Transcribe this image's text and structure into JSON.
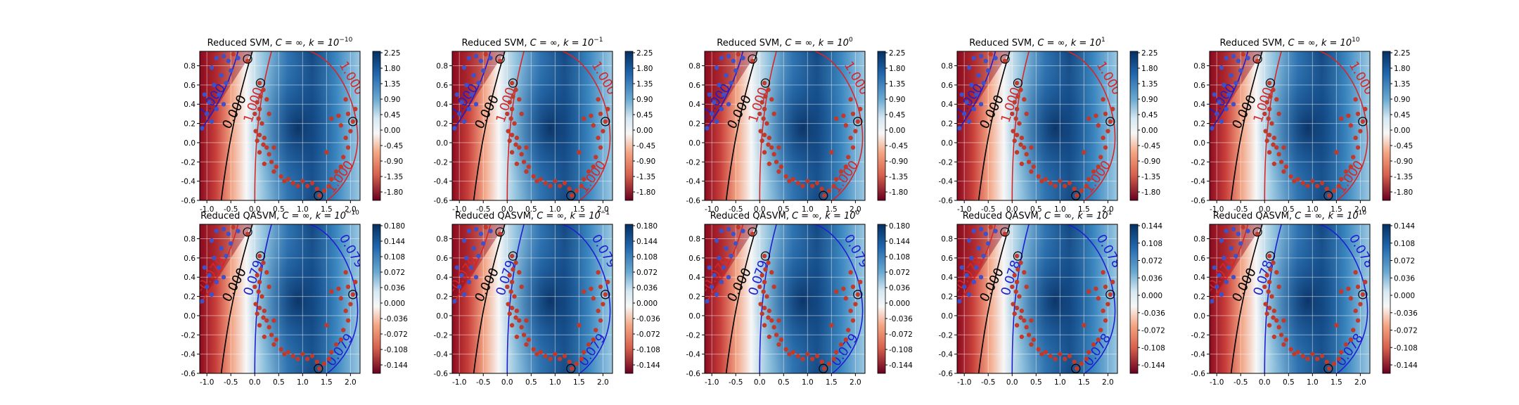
{
  "figure_colors": {
    "class_neg": "#c0392b",
    "class_pos": "#3f51c8",
    "boundary": "#000000",
    "margin_neg": "#d62728",
    "margin_pos": "#1f1fd0"
  },
  "chart_data": [
    {
      "type": "heatmap",
      "title_prefix": "Reduced SVM, ",
      "title_math": "C = ∞, k = 10",
      "title_exp": "−10",
      "xlim": [
        -1.15,
        2.2
      ],
      "ylim": [
        -0.6,
        0.95
      ],
      "xticks": [
        "-1.0",
        "-0.5",
        "0.0",
        "0.5",
        "1.0",
        "1.5",
        "2.0"
      ],
      "yticks": [
        "-0.6",
        "-0.4",
        "-0.2",
        "0.0",
        "0.2",
        "0.4",
        "0.6",
        "0.8"
      ],
      "colorbar_ticks": [
        "2.25",
        "1.80",
        "1.35",
        "0.90",
        "0.45",
        "0.00",
        "-0.45",
        "-0.90",
        "-1.35",
        "-1.80"
      ],
      "contour_labels": {
        "boundary": "0.000",
        "neg": "-1.000",
        "pos": "1.000",
        "far": "1.000",
        "low": "1.000"
      }
    },
    {
      "type": "heatmap",
      "title_prefix": "Reduced SVM, ",
      "title_math": "C = ∞, k = 10",
      "title_exp": "−1",
      "xlim": [
        -1.15,
        2.2
      ],
      "ylim": [
        -0.6,
        0.95
      ],
      "xticks": [
        "-1.0",
        "-0.5",
        "0.0",
        "0.5",
        "1.0",
        "1.5",
        "2.0"
      ],
      "yticks": [
        "-0.6",
        "-0.4",
        "-0.2",
        "0.0",
        "0.2",
        "0.4",
        "0.6",
        "0.8"
      ],
      "colorbar_ticks": [
        "2.25",
        "1.80",
        "1.35",
        "0.90",
        "0.45",
        "0.00",
        "-0.45",
        "-0.90",
        "-1.35",
        "-1.80"
      ],
      "contour_labels": {
        "boundary": "0.000",
        "neg": "-1.000",
        "pos": "1.000",
        "far": "1.000",
        "low": "1.000"
      }
    },
    {
      "type": "heatmap",
      "title_prefix": "Reduced SVM, ",
      "title_math": "C = ∞, k = 10",
      "title_exp": "0",
      "xlim": [
        -1.15,
        2.2
      ],
      "ylim": [
        -0.6,
        0.95
      ],
      "xticks": [
        "-1.0",
        "-0.5",
        "0.0",
        "0.5",
        "1.0",
        "1.5",
        "2.0"
      ],
      "yticks": [
        "-0.6",
        "-0.4",
        "-0.2",
        "0.0",
        "0.2",
        "0.4",
        "0.6",
        "0.8"
      ],
      "colorbar_ticks": [
        "2.25",
        "1.80",
        "1.35",
        "0.90",
        "0.45",
        "0.00",
        "-0.45",
        "-0.90",
        "-1.35",
        "-1.80"
      ],
      "contour_labels": {
        "boundary": "0.000",
        "neg": "-1.000",
        "pos": "1.000",
        "far": "1.000",
        "low": "1.000"
      }
    },
    {
      "type": "heatmap",
      "title_prefix": "Reduced SVM, ",
      "title_math": "C = ∞, k = 10",
      "title_exp": "1",
      "xlim": [
        -1.15,
        2.2
      ],
      "ylim": [
        -0.6,
        0.95
      ],
      "xticks": [
        "-1.0",
        "-0.5",
        "0.0",
        "0.5",
        "1.0",
        "1.5",
        "2.0"
      ],
      "yticks": [
        "-0.6",
        "-0.4",
        "-0.2",
        "0.0",
        "0.2",
        "0.4",
        "0.6",
        "0.8"
      ],
      "colorbar_ticks": [
        "2.25",
        "1.80",
        "1.35",
        "0.90",
        "0.45",
        "0.00",
        "-0.45",
        "-0.90",
        "-1.35",
        "-1.80"
      ],
      "contour_labels": {
        "boundary": "0.000",
        "neg": "-1.000",
        "pos": "1.000",
        "far": "1.000",
        "low": "1.000"
      }
    },
    {
      "type": "heatmap",
      "title_prefix": "Reduced SVM, ",
      "title_math": "C = ∞, k = 10",
      "title_exp": "10",
      "xlim": [
        -1.15,
        2.2
      ],
      "ylim": [
        -0.6,
        0.95
      ],
      "xticks": [
        "-1.0",
        "-0.5",
        "0.0",
        "0.5",
        "1.0",
        "1.5",
        "2.0"
      ],
      "yticks": [
        "-0.6",
        "-0.4",
        "-0.2",
        "0.0",
        "0.2",
        "0.4",
        "0.6",
        "0.8"
      ],
      "colorbar_ticks": [
        "2.25",
        "1.80",
        "1.35",
        "0.90",
        "0.45",
        "0.00",
        "-0.45",
        "-0.90",
        "-1.35",
        "-1.80"
      ],
      "contour_labels": {
        "boundary": "0.000",
        "neg": "-1.000",
        "pos": "1.000",
        "far": "1.000",
        "low": "1.000"
      }
    },
    {
      "type": "heatmap",
      "title_prefix": "Reduced QASVM, ",
      "title_math": "C = ∞, k = 10",
      "title_exp": "−10",
      "xlim": [
        -1.15,
        2.2
      ],
      "ylim": [
        -0.6,
        0.95
      ],
      "xticks": [
        "-1.0",
        "-0.5",
        "0.0",
        "0.5",
        "1.0",
        "1.5",
        "2.0"
      ],
      "yticks": [
        "-0.6",
        "-0.4",
        "-0.2",
        "0.0",
        "0.2",
        "0.4",
        "0.6",
        "0.8"
      ],
      "colorbar_ticks": [
        "0.180",
        "0.144",
        "0.108",
        "0.072",
        "0.036",
        "0.000",
        "-0.036",
        "-0.072",
        "-0.108",
        "-0.144"
      ],
      "contour_labels": {
        "boundary": "0.000",
        "neg": "-0.079",
        "pos": "0.079",
        "far": "0.079",
        "low": "0.079"
      }
    },
    {
      "type": "heatmap",
      "title_prefix": "Reduced QASVM, ",
      "title_math": "C = ∞, k = 10",
      "title_exp": "−1",
      "xlim": [
        -1.15,
        2.2
      ],
      "ylim": [
        -0.6,
        0.95
      ],
      "xticks": [
        "-1.0",
        "-0.5",
        "0.0",
        "0.5",
        "1.0",
        "1.5",
        "2.0"
      ],
      "yticks": [
        "-0.6",
        "-0.4",
        "-0.2",
        "0.0",
        "0.2",
        "0.4",
        "0.6",
        "0.8"
      ],
      "colorbar_ticks": [
        "0.180",
        "0.144",
        "0.108",
        "0.072",
        "0.036",
        "0.000",
        "-0.036",
        "-0.072",
        "-0.108",
        "-0.144"
      ],
      "contour_labels": {
        "boundary": "0.000",
        "neg": "-0.079",
        "pos": "0.079",
        "far": "0.079",
        "low": "0.079"
      }
    },
    {
      "type": "heatmap",
      "title_prefix": "Reduced QASVM, ",
      "title_math": "C = ∞, k = 10",
      "title_exp": "0",
      "xlim": [
        -1.15,
        2.2
      ],
      "ylim": [
        -0.6,
        0.95
      ],
      "xticks": [
        "-1.0",
        "-0.5",
        "0.0",
        "0.5",
        "1.0",
        "1.5",
        "2.0"
      ],
      "yticks": [
        "-0.6",
        "-0.4",
        "-0.2",
        "0.0",
        "0.2",
        "0.4",
        "0.6",
        "0.8"
      ],
      "colorbar_ticks": [
        "0.180",
        "0.144",
        "0.108",
        "0.072",
        "0.036",
        "0.000",
        "-0.036",
        "-0.072",
        "-0.108",
        "-0.144"
      ],
      "contour_labels": {
        "boundary": "0.000",
        "neg": "-0.079",
        "pos": "0.079",
        "far": "0.079",
        "low": "0.079"
      }
    },
    {
      "type": "heatmap",
      "title_prefix": "Reduced QASVM, ",
      "title_math": "C = ∞, k = 10",
      "title_exp": "1",
      "xlim": [
        -1.15,
        2.2
      ],
      "ylim": [
        -0.6,
        0.95
      ],
      "xticks": [
        "-1.0",
        "-0.5",
        "0.0",
        "0.5",
        "1.0",
        "1.5",
        "2.0"
      ],
      "yticks": [
        "-0.6",
        "-0.4",
        "-0.2",
        "0.0",
        "0.2",
        "0.4",
        "0.6",
        "0.8"
      ],
      "colorbar_ticks": [
        "0.144",
        "0.108",
        "0.072",
        "0.036",
        "0.000",
        "-0.036",
        "-0.072",
        "-0.108",
        "-0.144"
      ],
      "contour_labels": {
        "boundary": "0.000",
        "neg": "-0.078",
        "pos": "0.078",
        "far": "0.078",
        "low": "0.078"
      }
    },
    {
      "type": "heatmap",
      "title_prefix": "Reduced QASVM, ",
      "title_math": "C = ∞, k = 10",
      "title_exp": "10",
      "xlim": [
        -1.15,
        2.2
      ],
      "ylim": [
        -0.6,
        0.95
      ],
      "xticks": [
        "-1.0",
        "-0.5",
        "0.0",
        "0.5",
        "1.0",
        "1.5",
        "2.0"
      ],
      "yticks": [
        "-0.6",
        "-0.4",
        "-0.2",
        "0.0",
        "0.2",
        "0.4",
        "0.6",
        "0.8"
      ],
      "colorbar_ticks": [
        "0.144",
        "0.108",
        "0.072",
        "0.036",
        "0.000",
        "-0.036",
        "-0.072",
        "-0.108",
        "-0.144"
      ],
      "contour_labels": {
        "boundary": "0.000",
        "neg": "-0.078",
        "pos": "0.078",
        "far": "0.078",
        "low": "0.078"
      }
    }
  ]
}
